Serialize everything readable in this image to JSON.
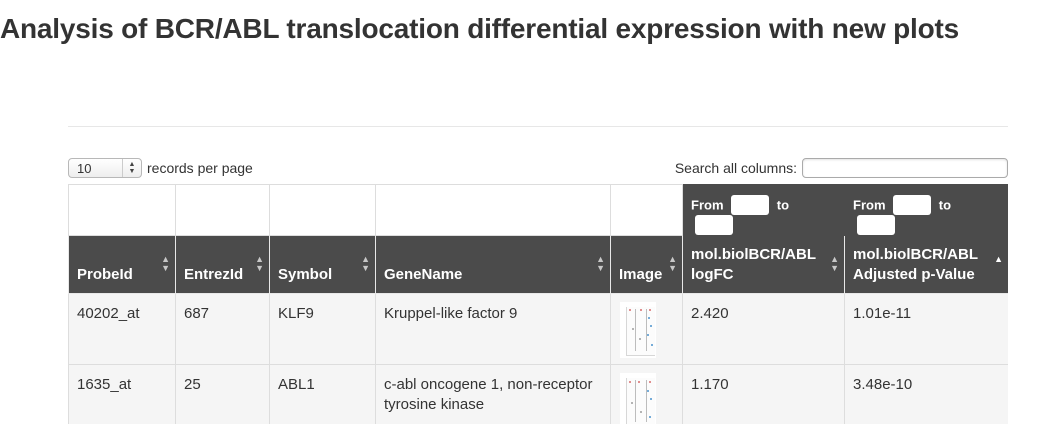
{
  "page": {
    "title": "Analysis of BCR/ABL translocation differential expression with new plots"
  },
  "controls": {
    "page_length": "10",
    "records_per_page_label": "records per page",
    "search_label": "Search all columns:",
    "search_value": "",
    "search_placeholder": ""
  },
  "filters": {
    "logfc": {
      "from_label": "From",
      "to_label": "to",
      "from_value": "",
      "to_value": ""
    },
    "adjusted_p": {
      "from_label": "From",
      "to_label": "to",
      "from_value": "",
      "to_value": ""
    }
  },
  "table": {
    "columns": [
      "ProbeId",
      "EntrezId",
      "Symbol",
      "GeneName",
      "Image",
      "mol.biolBCR/ABL logFC",
      "mol.biolBCR/ABL Adjusted p-Value"
    ],
    "rows": [
      {
        "probe_id": "40202_at",
        "entrez_id": "687",
        "symbol": "KLF9",
        "gene_name": "Kruppel-like factor 9",
        "logfc": "2.420",
        "adjusted_p_value": "1.01e-11"
      },
      {
        "probe_id": "1635_at",
        "entrez_id": "25",
        "symbol": "ABL1",
        "gene_name": "c-abl oncogene 1, non-receptor tyrosine kinase",
        "logfc": "1.170",
        "adjusted_p_value": "3.48e-10"
      }
    ]
  },
  "colors": {
    "header_background": "#4b4b4b",
    "row_background": "#f5f5f5",
    "text": "#333333"
  }
}
